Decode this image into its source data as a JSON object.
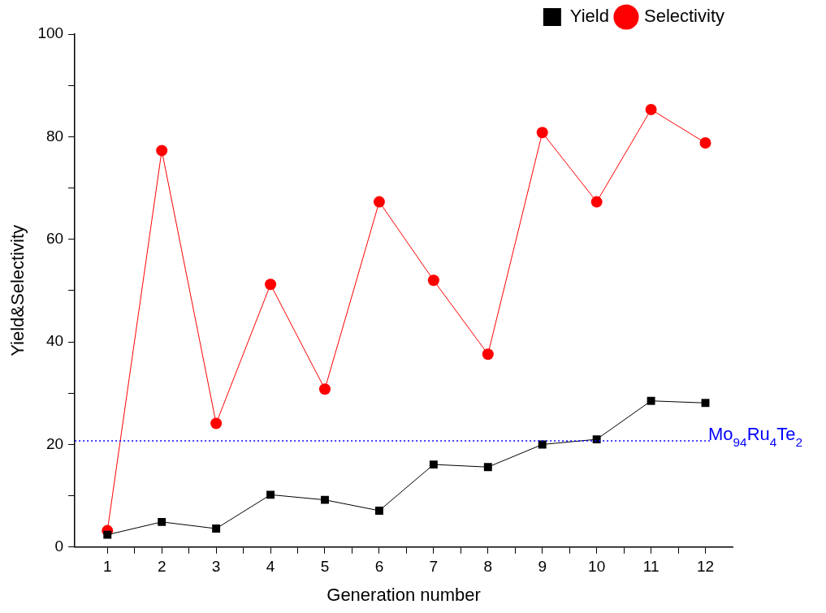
{
  "chart_data": {
    "type": "line",
    "xlabel": "Generation number",
    "ylabel": "Yield&Selectivity",
    "x": [
      1,
      2,
      3,
      4,
      5,
      6,
      7,
      8,
      9,
      10,
      11,
      12
    ],
    "series": [
      {
        "name": "Yield",
        "color": "#000000",
        "marker": "square",
        "values": [
          2.4,
          4.9,
          3.6,
          10.2,
          9.2,
          7.1,
          16.1,
          15.6,
          20.0,
          21.0,
          28.5,
          28.1
        ]
      },
      {
        "name": "Selectivity",
        "color": "#ff0000",
        "marker": "circle",
        "values": [
          3.2,
          77.3,
          24.1,
          51.2,
          30.8,
          67.3,
          52.0,
          37.6,
          80.8,
          67.3,
          85.3,
          78.8
        ]
      }
    ],
    "xlim": [
      0.4,
      12.5
    ],
    "xticks": [
      1,
      {
        "value": 1.5,
        "label": null
      },
      2,
      {
        "value": 2.5,
        "label": null
      },
      3,
      {
        "value": 3.5,
        "label": null
      },
      4,
      {
        "value": 4.5,
        "label": null
      },
      5,
      {
        "value": 5.5,
        "label": null
      },
      6,
      {
        "value": 6.5,
        "label": null
      },
      7,
      {
        "value": 7.5,
        "label": null
      },
      8,
      {
        "value": 8.5,
        "label": null
      },
      9,
      {
        "value": 9.5,
        "label": null
      },
      10,
      {
        "value": 10.5,
        "label": null
      },
      11,
      {
        "value": 11.5,
        "label": null
      },
      12
    ],
    "ylim": [
      0,
      100
    ],
    "yticks": [
      0,
      {
        "value": 10,
        "label": null
      },
      20,
      {
        "value": 30,
        "label": null
      },
      40,
      {
        "value": 50,
        "label": null
      },
      60,
      {
        "value": 70,
        "label": null
      },
      80,
      {
        "value": 90,
        "label": null
      },
      100
    ],
    "ref_lines": [
      {
        "axis": "y",
        "value": 20.7,
        "label": "Mo$_{94}$Ru$_{4}$Te$_{2}$",
        "color": "#0000ff",
        "line_style": "dotted"
      }
    ],
    "grid": false,
    "legend": "top right",
    "line_style": "solid"
  }
}
